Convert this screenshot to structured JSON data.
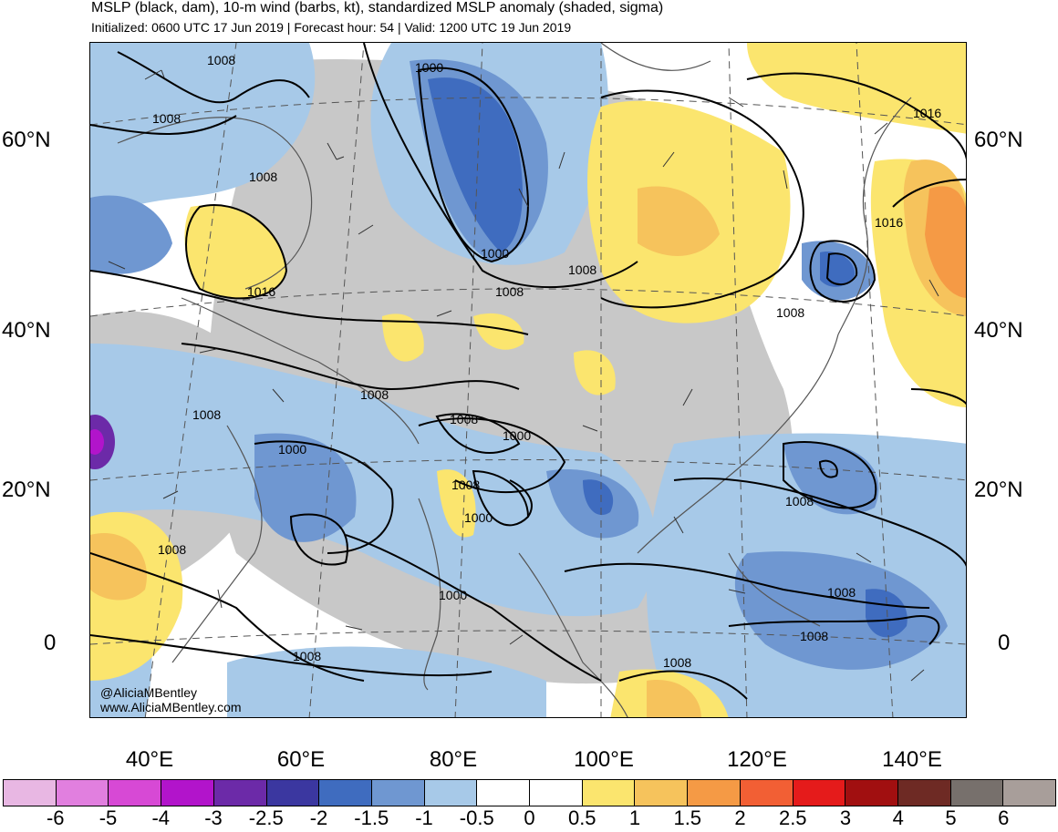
{
  "header": {
    "title": "MSLP (black, dam), 10-m wind (barbs, kt), standardized MSLP anomaly (shaded, sigma)",
    "subtitle": "Initialized: 0600 UTC 17 Jun 2019 | Forecast hour: 54 | Valid: 1200 UTC 19 Jun 2019"
  },
  "map": {
    "lat_labels_left": [
      "60°N",
      "40°N",
      "20°N",
      "0"
    ],
    "lat_labels_right": [
      "60°N",
      "40°N",
      "20°N",
      "0"
    ],
    "lon_labels": [
      "40°E",
      "60°E",
      "80°E",
      "100°E",
      "120°E",
      "140°E"
    ],
    "contour_labels": [
      "1008",
      "1008",
      "1008",
      "1016",
      "1000",
      "1000",
      "1008",
      "1008",
      "1016",
      "1016",
      "1008",
      "1008",
      "1008",
      "1000",
      "1000",
      "1008",
      "1000",
      "1008",
      "1008",
      "1000",
      "1008",
      "1008",
      "1008",
      "1008",
      "1008"
    ],
    "credits": [
      "@AliciaMBentley",
      "www.AliciaMBentley.com"
    ]
  },
  "colorbar": {
    "colors": [
      "#e8b7e3",
      "#e17fdf",
      "#d749d5",
      "#b214cb",
      "#6c2aa8",
      "#3b37a0",
      "#3f6cbf",
      "#6f97d1",
      "#a7c9e8",
      "#ffffff",
      "#ffffff",
      "#fbe56e",
      "#f6c35c",
      "#f59a45",
      "#f25f34",
      "#e51b1b",
      "#a10f10",
      "#6e2a24",
      "#77706c",
      "#a89e9a"
    ],
    "labels": [
      "-6",
      "-5",
      "-4",
      "-3",
      "-2.5",
      "-2",
      "-1.5",
      "-1",
      "-0.5",
      "0",
      "0.5",
      "1",
      "1.5",
      "2",
      "2.5",
      "3",
      "4",
      "5",
      "6"
    ]
  }
}
